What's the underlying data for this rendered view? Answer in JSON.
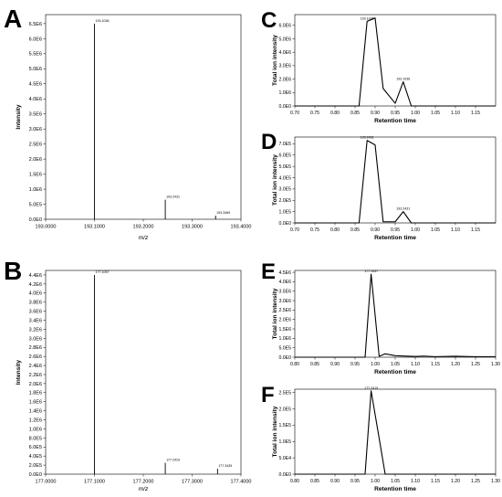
{
  "chart_data": [
    {
      "panel": "A",
      "type": "bar",
      "xlabel": "m/z",
      "ylabel": "Intensity",
      "xlim": [
        193.0,
        193.4
      ],
      "ylim": [
        0,
        6800000
      ],
      "x_ticks": [
        "193.0000",
        "193.1000",
        "193.2000",
        "193.3000",
        "193.4000"
      ],
      "y_ticks": [
        "0.0E0",
        "5.0E5",
        "1.0E6",
        "1.5E6",
        "2.0E6",
        "2.5E6",
        "3.0E6",
        "3.5E6",
        "4.0E6",
        "4.5E6",
        "5.0E6",
        "5.5E6",
        "6.0E6",
        "6.5E6"
      ],
      "peaks": [
        {
          "x": 193.1,
          "y": 6500000,
          "label": "193.1036"
        },
        {
          "x": 193.245,
          "y": 650000,
          "label": "193.2431"
        },
        {
          "x": 193.348,
          "y": 120000,
          "label": "193.3469"
        }
      ]
    },
    {
      "panel": "B",
      "type": "bar",
      "xlabel": "m/z",
      "ylabel": "Intensity",
      "xlim": [
        177.0,
        177.4
      ],
      "ylim": [
        0,
        4500000
      ],
      "x_ticks": [
        "177.0000",
        "177.1000",
        "177.2000",
        "177.3000",
        "177.4000"
      ],
      "y_ticks": [
        "0.0E0",
        "2.0E5",
        "4.0E5",
        "6.0E5",
        "8.0E5",
        "1.0E6",
        "1.2E6",
        "1.4E6",
        "1.6E6",
        "1.8E6",
        "2.0E6",
        "2.2E6",
        "2.4E6",
        "2.6E6",
        "2.8E6",
        "3.0E6",
        "3.2E6",
        "3.4E6",
        "3.6E6",
        "3.8E6",
        "4.0E6",
        "4.2E6",
        "4.4E6"
      ],
      "peaks": [
        {
          "x": 177.1,
          "y": 4400000,
          "label": "177.1057"
        },
        {
          "x": 177.245,
          "y": 250000,
          "label": "177.2419"
        },
        {
          "x": 177.352,
          "y": 120000,
          "label": "177.3439"
        }
      ]
    },
    {
      "panel": "C",
      "type": "line",
      "xlabel": "Retention time",
      "ylabel": "Total ion intensity",
      "xlim": [
        0.7,
        1.2
      ],
      "ylim": [
        0,
        6800000
      ],
      "x_ticks": [
        "0.70",
        "0.75",
        "0.80",
        "0.85",
        "0.90",
        "0.95",
        "1.00",
        "1.05",
        "1.10",
        "1.15"
      ],
      "y_ticks": [
        "0.0E0",
        "1.0E6",
        "2.0E6",
        "3.0E6",
        "4.0E6",
        "5.0E6",
        "6.0E6"
      ],
      "x": [
        0.7,
        0.86,
        0.88,
        0.9,
        0.92,
        0.95,
        0.97,
        0.99,
        1.0,
        1.2
      ],
      "y": [
        0,
        0,
        6300000,
        6550000,
        1300000,
        200000,
        1800000,
        0,
        0,
        0
      ],
      "annotations": [
        {
          "x": 0.88,
          "y": 6300000,
          "text": "193.1036"
        },
        {
          "x": 0.97,
          "y": 1800000,
          "text": "193.1036"
        }
      ]
    },
    {
      "panel": "D",
      "type": "line",
      "xlabel": "Retention time",
      "ylabel": "Total ion intensity",
      "xlim": [
        0.7,
        1.2
      ],
      "ylim": [
        0,
        760000
      ],
      "x_ticks": [
        "0.70",
        "0.75",
        "0.80",
        "0.85",
        "0.90",
        "0.95",
        "1.00",
        "1.05",
        "1.10",
        "1.15"
      ],
      "y_ticks": [
        "0.0E0",
        "1.0E5",
        "2.0E5",
        "3.0E5",
        "4.0E5",
        "5.0E5",
        "6.0E5",
        "7.0E5"
      ],
      "x": [
        0.7,
        0.86,
        0.88,
        0.9,
        0.92,
        0.95,
        0.97,
        0.99,
        1.0,
        1.2
      ],
      "y": [
        0,
        0,
        730000,
        690000,
        10000,
        10000,
        100000,
        0,
        0,
        0
      ],
      "annotations": [
        {
          "x": 0.88,
          "y": 730000,
          "text": "193.2431"
        },
        {
          "x": 0.97,
          "y": 100000,
          "text": "193.2431"
        }
      ]
    },
    {
      "panel": "E",
      "type": "line",
      "xlabel": "Retention time",
      "ylabel": "Total ion intensity",
      "xlim": [
        0.8,
        1.3
      ],
      "ylim": [
        0,
        4600000
      ],
      "x_ticks": [
        "0.80",
        "0.85",
        "0.90",
        "0.95",
        "1.00",
        "1.05",
        "1.10",
        "1.15",
        "1.20",
        "1.25",
        "1.30"
      ],
      "y_ticks": [
        "0.0E0",
        "5.0E5",
        "1.0E6",
        "1.5E6",
        "2.0E6",
        "2.5E6",
        "3.0E6",
        "3.5E6",
        "4.0E6",
        "4.5E6"
      ],
      "x": [
        0.8,
        0.975,
        0.99,
        1.01,
        1.025,
        1.05,
        1.1,
        1.12,
        1.15,
        1.2,
        1.25,
        1.3
      ],
      "y": [
        0,
        0,
        4400000,
        50000,
        180000,
        80000,
        40000,
        60000,
        30000,
        50000,
        30000,
        30000
      ],
      "annotations": [
        {
          "x": 0.99,
          "y": 4400000,
          "text": "177.1057"
        }
      ]
    },
    {
      "panel": "F",
      "type": "line",
      "xlabel": "Retention time",
      "ylabel": "Total ion intensity",
      "xlim": [
        0.8,
        1.3
      ],
      "ylim": [
        0,
        260000
      ],
      "x_ticks": [
        "0.80",
        "0.85",
        "0.90",
        "0.95",
        "1.00",
        "1.05",
        "1.10",
        "1.15",
        "1.20",
        "1.25",
        "1.30"
      ],
      "y_ticks": [
        "0.0E0",
        "5.0E4",
        "1.0E5",
        "1.5E5",
        "2.0E5",
        "2.5E5"
      ],
      "x": [
        0.8,
        0.975,
        0.99,
        1.01,
        1.025,
        1.3
      ],
      "y": [
        0,
        0,
        255000,
        110000,
        0,
        0
      ],
      "annotations": [
        {
          "x": 0.99,
          "y": 255000,
          "text": "177.2419"
        }
      ]
    }
  ]
}
